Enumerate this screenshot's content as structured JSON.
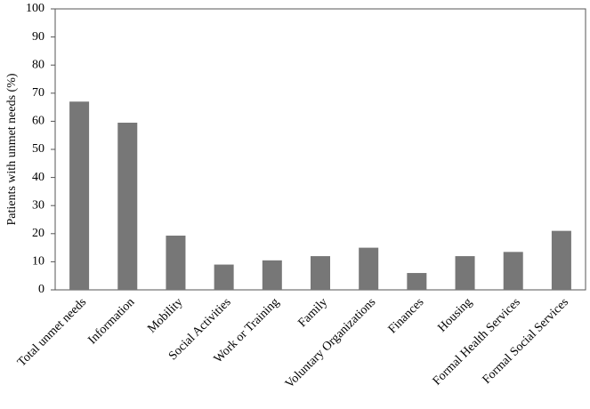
{
  "chart_data": {
    "type": "bar",
    "y_label": "Patients  with unmet needs (%)",
    "categories": [
      "Total unmet needs",
      "Information",
      "Mobility",
      "Social Activities",
      "Work or Training",
      "Family",
      "Voluntary Organizations",
      "Finances",
      "Housing",
      "Formal Health Services",
      "Formal Social Services"
    ],
    "values": [
      67,
      59.5,
      19.3,
      9,
      10.5,
      12,
      15,
      6,
      12,
      13.5,
      21
    ],
    "color": "#777777",
    "ylim": [
      0,
      100
    ],
    "yticks": [
      0,
      10,
      20,
      30,
      40,
      50,
      60,
      70,
      80,
      90,
      100
    ],
    "grid": false
  }
}
